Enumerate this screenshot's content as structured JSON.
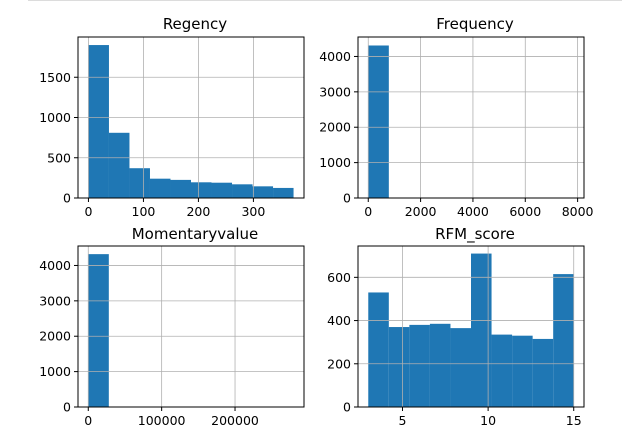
{
  "chart_data": [
    {
      "type": "bar",
      "title": "Regency",
      "bin_edges": [
        0,
        37.3,
        74.6,
        111.9,
        149.2,
        186.5,
        223.8,
        261.1,
        298.4,
        335.7,
        373
      ],
      "values": [
        1900,
        810,
        370,
        240,
        225,
        195,
        190,
        170,
        145,
        125
      ],
      "xlim": [
        -19,
        392
      ],
      "ylim": [
        0,
        2000
      ],
      "xticks": [
        0,
        100,
        200,
        300
      ],
      "yticks": [
        0,
        500,
        1000,
        1500
      ],
      "xtick_labels": [
        "0",
        "100",
        "200",
        "300"
      ],
      "ytick_labels": [
        "0",
        "500",
        "1000",
        "1500"
      ],
      "grid": true
    },
    {
      "type": "bar",
      "title": "Frequency",
      "bin_edges": [
        1,
        786,
        1571,
        2356,
        3141,
        3926,
        4711,
        5496,
        6281,
        7066,
        7851
      ],
      "values": [
        4310,
        12,
        3,
        1,
        0,
        0,
        1,
        0,
        0,
        1
      ],
      "xlim": [
        -392,
        8244
      ],
      "ylim": [
        0,
        4550
      ],
      "xticks": [
        0,
        2000,
        4000,
        6000,
        8000
      ],
      "yticks": [
        0,
        1000,
        2000,
        3000,
        4000
      ],
      "xtick_labels": [
        "0",
        "2000",
        "4000",
        "6000",
        "8000"
      ],
      "ytick_labels": [
        "0",
        "1000",
        "2000",
        "3000",
        "4000"
      ],
      "grid": true
    },
    {
      "type": "bar",
      "title": "Momentaryvalue",
      "bin_edges": [
        0,
        28000,
        56000,
        84000,
        112000,
        140000,
        168000,
        196000,
        224000,
        252000,
        280000
      ],
      "values": [
        4320,
        8,
        3,
        0,
        0,
        1,
        0,
        0,
        0,
        1
      ],
      "xlim": [
        -14000,
        294000
      ],
      "ylim": [
        0,
        4550
      ],
      "xticks": [
        0,
        100000,
        200000
      ],
      "yticks": [
        0,
        1000,
        2000,
        3000,
        4000
      ],
      "xtick_labels": [
        "0",
        "100000",
        "200000"
      ],
      "ytick_labels": [
        "0",
        "1000",
        "2000",
        "3000",
        "4000"
      ],
      "grid": true
    },
    {
      "type": "bar",
      "title": "RFM_score",
      "bin_edges": [
        3,
        4.2,
        5.4,
        6.6,
        7.8,
        9,
        10.2,
        11.4,
        12.6,
        13.8,
        15
      ],
      "values": [
        530,
        370,
        380,
        385,
        365,
        710,
        335,
        330,
        315,
        615
      ],
      "xlim": [
        2.4,
        15.6
      ],
      "ylim": [
        0,
        745
      ],
      "xticks": [
        5,
        10,
        15
      ],
      "yticks": [
        0,
        200,
        400,
        600
      ],
      "xtick_labels": [
        "5",
        "10",
        "15"
      ],
      "ytick_labels": [
        "0",
        "200",
        "400",
        "600"
      ],
      "grid": true
    }
  ]
}
